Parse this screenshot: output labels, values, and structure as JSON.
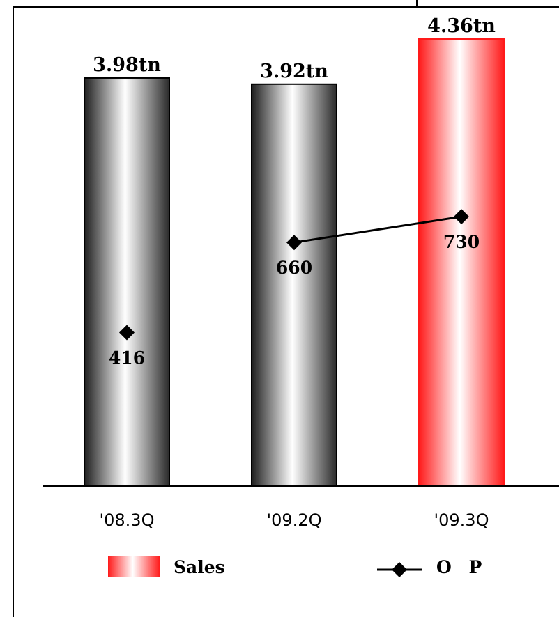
{
  "chart_data": {
    "type": "bar",
    "categories": [
      "'08.3Q",
      "'09.2Q",
      "'09.3Q"
    ],
    "series": [
      {
        "name": "Sales",
        "kind": "bar",
        "values": [
          3.98,
          3.92,
          4.36
        ],
        "labels": [
          "3.98tn",
          "3.92tn",
          "4.36tn"
        ],
        "highlight_index": 2
      },
      {
        "name": "O P",
        "kind": "line-marker",
        "values": [
          416,
          660,
          730
        ],
        "labels": [
          "416",
          "660",
          "730"
        ],
        "connected_from_index": 1
      }
    ],
    "legend": {
      "position": "bottom",
      "items": [
        "Sales",
        "O P"
      ]
    },
    "colors": {
      "bar_dark": "#2a2a2a",
      "bar_light": "#ffffff",
      "highlight": "#ff1a1a",
      "line": "#000000"
    }
  }
}
